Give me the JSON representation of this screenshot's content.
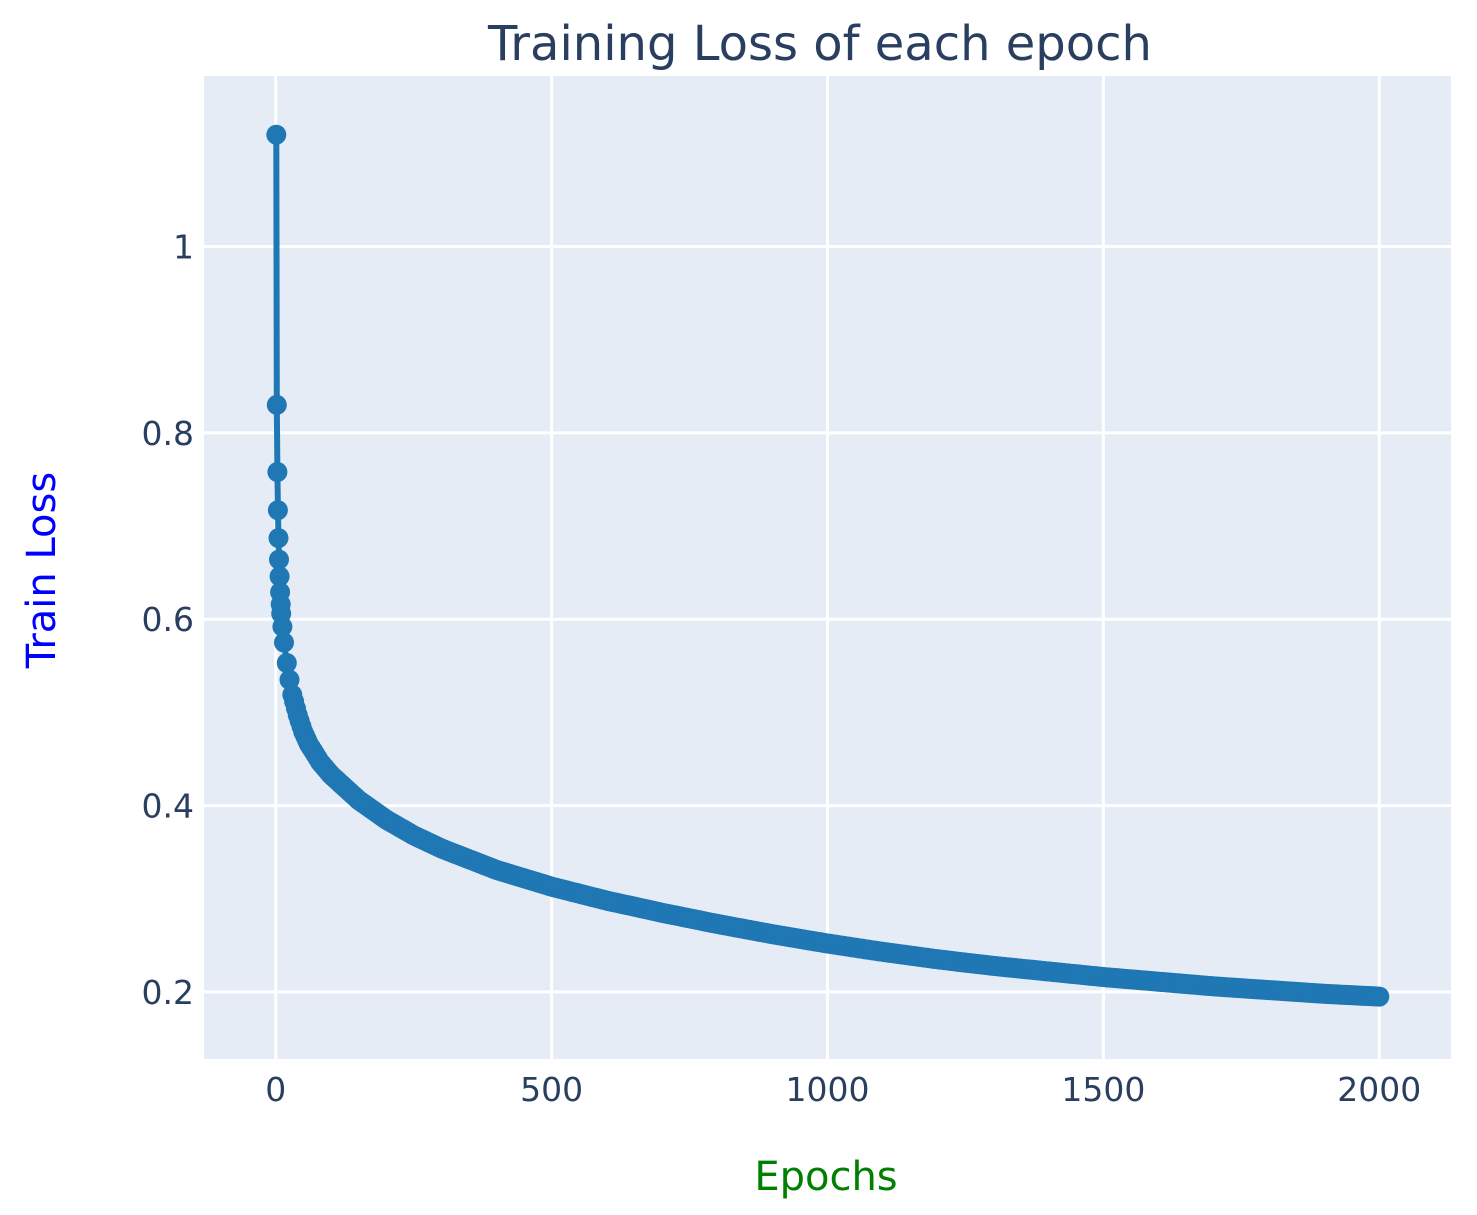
{
  "chart_data": {
    "type": "line",
    "title": "Training Loss of each epoch",
    "xlabel": "Epochs",
    "ylabel": "Train Loss",
    "xlim": [
      -130,
      2130
    ],
    "ylim": [
      0.128,
      1.183
    ],
    "xticks": [
      0,
      500,
      1000,
      1500,
      2000
    ],
    "xtick_labels": [
      "0",
      "500",
      "1000",
      "1500",
      "2000"
    ],
    "yticks": [
      0.2,
      0.4,
      0.6,
      0.8,
      1
    ],
    "ytick_labels": [
      "0.2",
      "0.4",
      "0.6",
      "0.8",
      "1"
    ],
    "grid": true,
    "legend": "none",
    "mode": "lines+markers",
    "series": [
      {
        "color": "#1f77b4",
        "x": [
          1,
          2,
          3,
          4,
          5,
          6,
          7,
          8,
          9,
          10,
          12,
          15,
          20,
          25,
          30,
          40,
          50,
          60,
          80,
          100,
          150,
          200,
          250,
          300,
          400,
          500,
          600,
          700,
          800,
          900,
          1000,
          1100,
          1200,
          1300,
          1400,
          1500,
          1600,
          1700,
          1800,
          1900,
          2000
        ],
        "y": [
          1.12,
          0.83,
          0.758,
          0.717,
          0.687,
          0.664,
          0.646,
          0.629,
          0.616,
          0.606,
          0.592,
          0.575,
          0.553,
          0.535,
          0.519,
          0.497,
          0.479,
          0.466,
          0.447,
          0.433,
          0.406,
          0.385,
          0.368,
          0.354,
          0.331,
          0.313,
          0.298,
          0.285,
          0.273,
          0.262,
          0.252,
          0.243,
          0.235,
          0.228,
          0.222,
          0.216,
          0.211,
          0.206,
          0.202,
          0.198,
          0.195
        ]
      }
    ]
  },
  "colors": {
    "plot_bg": "#e5ecf6",
    "grid": "#ffffff",
    "title": "#2a3f5f",
    "xlabel": "#008000",
    "ylabel": "#0000ff"
  }
}
